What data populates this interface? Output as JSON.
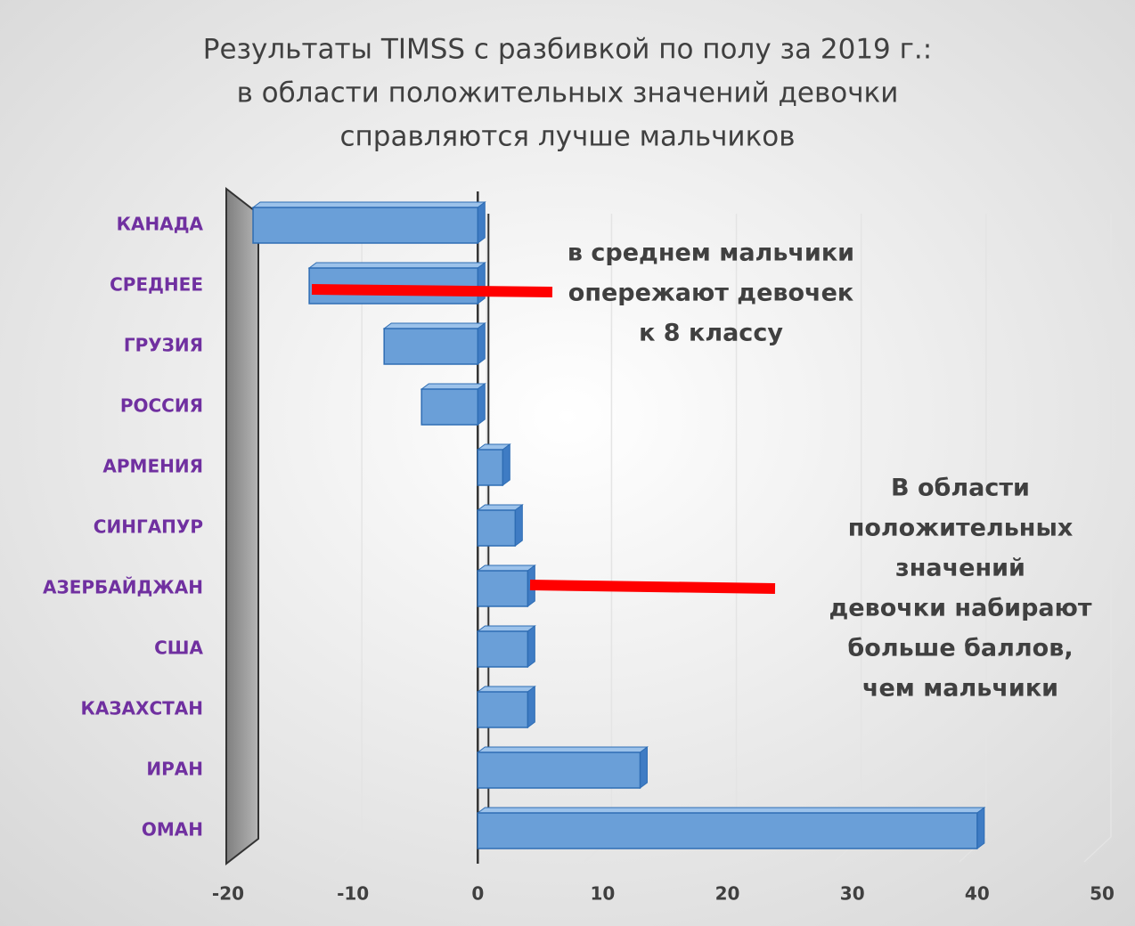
{
  "chart_data": {
    "type": "bar",
    "orientation": "horizontal",
    "title": [
      "Результаты TIMSS с разбивкой по полу за 2019 г.:",
      "в области положительных значений девочки",
      "справляются лучше мальчиков"
    ],
    "categories": [
      "КАНАДА",
      "СРЕДНЕЕ",
      "ГРУЗИЯ",
      "РОССИЯ",
      "АРМЕНИЯ",
      "СИНГАПУР",
      "АЗЕРБАЙДЖАН",
      "США",
      "КАЗАХСТАН",
      "ИРАН",
      "ОМАН"
    ],
    "values": [
      -18,
      -13.5,
      -7.5,
      -4.5,
      2,
      3,
      4,
      4,
      4,
      13,
      40
    ],
    "color": "#6a9fd8",
    "xlim": [
      -20,
      50
    ],
    "xticks": [
      -20,
      -10,
      0,
      10,
      20,
      30,
      40,
      50
    ],
    "grid": true,
    "annotations": [
      [
        "в среднем мальчики",
        "опережают девочек",
        "к 8 классу"
      ],
      [
        "В области",
        "положительных",
        "значений",
        "девочки набирают",
        "больше баллов,",
        "чем мальчики"
      ]
    ]
  }
}
